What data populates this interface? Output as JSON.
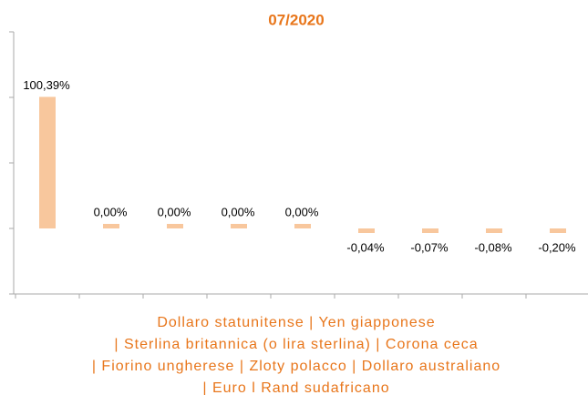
{
  "chart_data": {
    "type": "bar",
    "title": "07/2020",
    "categories": [
      null,
      null,
      null,
      null,
      null,
      null,
      null,
      null,
      null
    ],
    "values": [
      100.39,
      0.0,
      0.0,
      0.0,
      0.0,
      -0.04,
      -0.07,
      -0.08,
      -0.2
    ],
    "value_labels": [
      "100,39%",
      "0,00%",
      "0,00%",
      "0,00%",
      "0,00%",
      "-0,04%",
      "-0,07%",
      "-0,08%",
      "-0,20%"
    ],
    "color": "#f8c79d",
    "ylim": [
      -50,
      150
    ],
    "yticks": [
      -50,
      0,
      50,
      100,
      150
    ],
    "caption_lines": [
      "Dollaro statunitense | Yen giapponese",
      "| Sterlina britannica (o lira sterlina) | Corona ceca",
      "| Fiorino ungherese | Zloty polacco | Dollaro australiano",
      "| Euro l Rand sudafricano"
    ]
  }
}
